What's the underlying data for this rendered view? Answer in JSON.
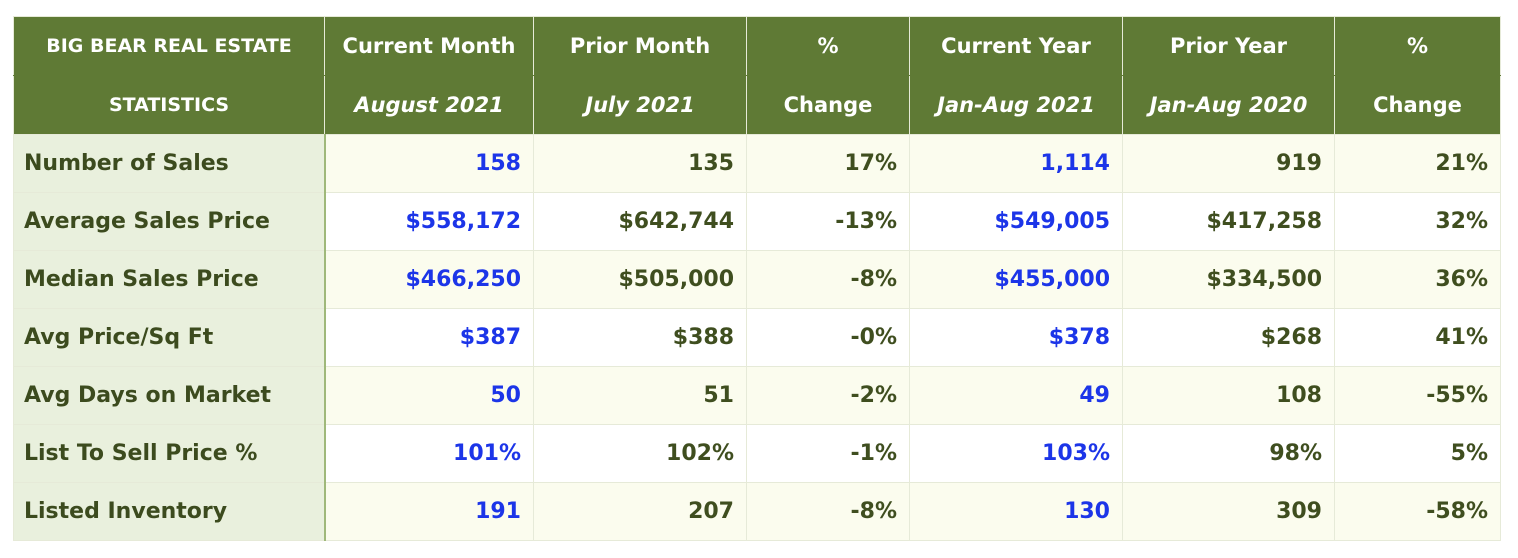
{
  "table": {
    "header_top": [
      "BIG BEAR REAL ESTATE",
      "Current Month",
      "Prior Month",
      "%",
      "Current Year",
      "Prior Year",
      "%"
    ],
    "header_bottom": [
      "STATISTICS",
      "August 2021",
      "July 2021",
      "Change",
      "Jan-Aug 2021",
      "Jan-Aug 2020",
      "Change"
    ],
    "rows": [
      {
        "label": "Number of Sales",
        "values": [
          "158",
          "135",
          "17%",
          "1,114",
          "919",
          "21%"
        ]
      },
      {
        "label": "Average Sales Price",
        "values": [
          "$558,172",
          "$642,744",
          "-13%",
          "$549,005",
          "$417,258",
          "32%"
        ]
      },
      {
        "label": "Median Sales Price",
        "values": [
          "$466,250",
          "$505,000",
          "-8%",
          "$455,000",
          "$334,500",
          "36%"
        ]
      },
      {
        "label": "Avg Price/Sq Ft",
        "values": [
          "$387",
          "$388",
          "-0%",
          "$378",
          "$268",
          "41%"
        ]
      },
      {
        "label": "Avg Days on Market",
        "values": [
          "50",
          "51",
          "-2%",
          "49",
          "108",
          "-55%"
        ]
      },
      {
        "label": "List To Sell Price %",
        "values": [
          "101%",
          "102%",
          "-1%",
          "103%",
          "98%",
          "5%"
        ]
      },
      {
        "label": "Listed Inventory",
        "values": [
          "191",
          "207",
          "-8%",
          "130",
          "309",
          "-58%"
        ]
      }
    ]
  },
  "colors": {
    "header_bg": "#5f7a35",
    "label_bg": "#e9f0dd",
    "highlight_value": "#1c35e8",
    "value_text": "#3f4e1f"
  }
}
